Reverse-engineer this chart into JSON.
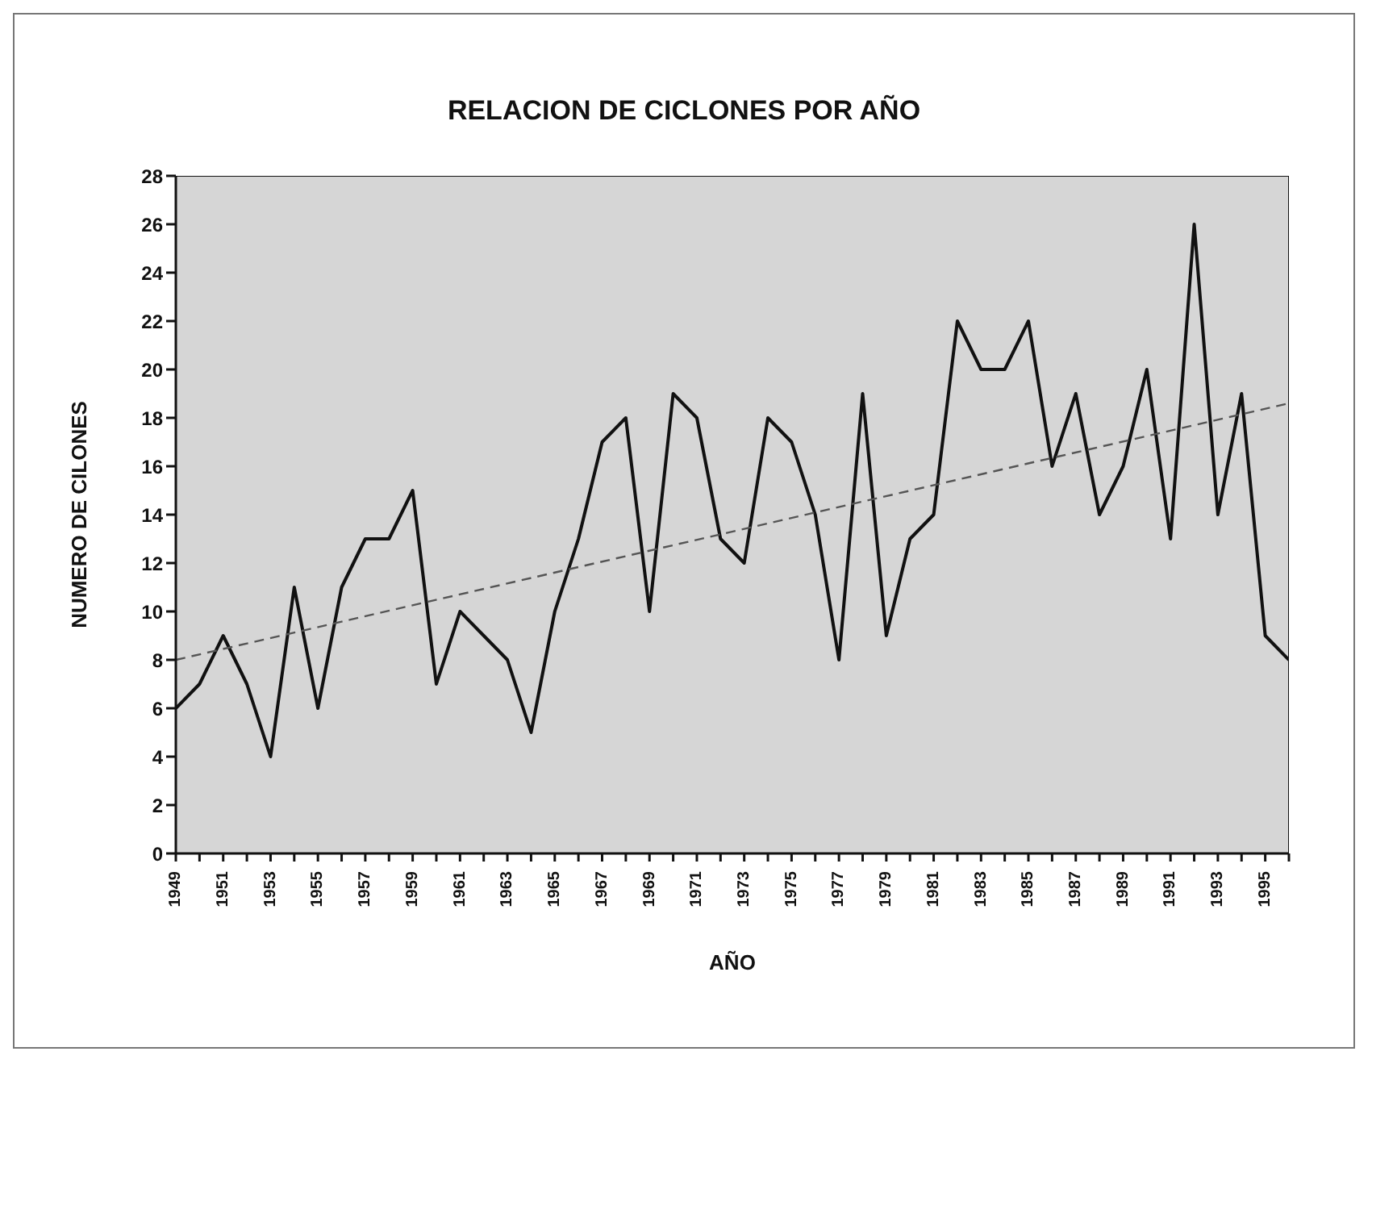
{
  "chart_data": {
    "type": "line",
    "title": "RELACION DE CICLONES POR AÑO",
    "xlabel": "AÑO",
    "ylabel": "NUMERO DE CILONES",
    "x": [
      1949,
      1950,
      1951,
      1952,
      1953,
      1954,
      1955,
      1956,
      1957,
      1958,
      1959,
      1960,
      1961,
      1962,
      1963,
      1964,
      1965,
      1966,
      1967,
      1968,
      1969,
      1970,
      1971,
      1972,
      1973,
      1974,
      1975,
      1976,
      1977,
      1978,
      1979,
      1980,
      1981,
      1982,
      1983,
      1984,
      1985,
      1986,
      1987,
      1988,
      1989,
      1990,
      1991,
      1992,
      1993,
      1994,
      1995,
      1996
    ],
    "series": [
      {
        "color": "#111111",
        "values": [
          6,
          7,
          9,
          7,
          4,
          11,
          6,
          11,
          13,
          13,
          15,
          7,
          10,
          9,
          8,
          5,
          10,
          13,
          17,
          18,
          10,
          19,
          18,
          13,
          12,
          18,
          17,
          14,
          8,
          19,
          9,
          13,
          14,
          22,
          20,
          20,
          22,
          16,
          19,
          14,
          16,
          20,
          13,
          26,
          14,
          19,
          9,
          8
        ]
      },
      {
        "type": "line",
        "color": "#555555",
        "line_style": "dashed",
        "x": [
          1949,
          1996
        ],
        "values": [
          8,
          18.6
        ]
      }
    ],
    "xlim": [
      1949,
      1996
    ],
    "xticks": [
      1949,
      {
        "value": 1950,
        "label": null
      },
      1951,
      {
        "value": 1952,
        "label": null
      },
      1953,
      {
        "value": 1954,
        "label": null
      },
      1955,
      {
        "value": 1956,
        "label": null
      },
      1957,
      {
        "value": 1958,
        "label": null
      },
      1959,
      {
        "value": 1960,
        "label": null
      },
      1961,
      {
        "value": 1962,
        "label": null
      },
      1963,
      {
        "value": 1964,
        "label": null
      },
      1965,
      {
        "value": 1966,
        "label": null
      },
      1967,
      {
        "value": 1968,
        "label": null
      },
      1969,
      {
        "value": 1970,
        "label": null
      },
      1971,
      {
        "value": 1972,
        "label": null
      },
      1973,
      {
        "value": 1974,
        "label": null
      },
      1975,
      {
        "value": 1976,
        "label": null
      },
      1977,
      {
        "value": 1978,
        "label": null
      },
      1979,
      {
        "value": 1980,
        "label": null
      },
      1981,
      {
        "value": 1982,
        "label": null
      },
      1983,
      {
        "value": 1984,
        "label": null
      },
      1985,
      {
        "value": 1986,
        "label": null
      },
      1987,
      {
        "value": 1988,
        "label": null
      },
      1989,
      {
        "value": 1990,
        "label": null
      },
      1991,
      {
        "value": 1992,
        "label": null
      },
      1993,
      {
        "value": 1994,
        "label": null
      },
      1995,
      {
        "value": 1996,
        "label": null
      }
    ],
    "ylim": [
      0,
      28
    ],
    "yticks": [
      0,
      2,
      4,
      6,
      8,
      10,
      12,
      14,
      16,
      18,
      20,
      22,
      24,
      26,
      28
    ],
    "grid": false,
    "marker": "none",
    "line_style": "solid"
  }
}
